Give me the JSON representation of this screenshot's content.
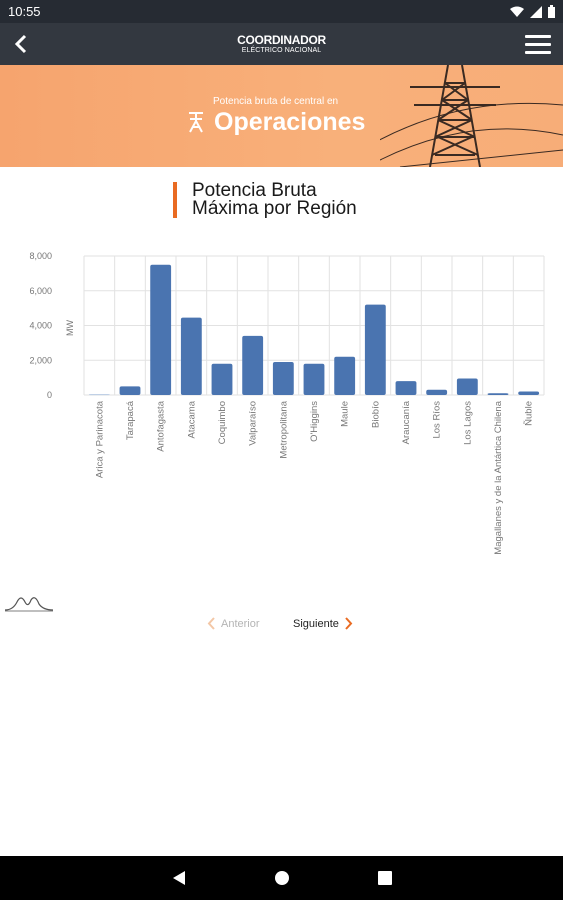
{
  "status_bar": {
    "time": "10:55"
  },
  "app_bar": {
    "logo_line1": "COORDINADOR",
    "logo_line2": "ELÉCTRICO NACIONAL"
  },
  "banner": {
    "pre_title": "Potencia bruta de central en",
    "title": "Operaciones"
  },
  "section": {
    "title_line1": "Potencia Bruta",
    "title_line2": "Máxima por Región"
  },
  "pager": {
    "prev_label": "Anterior",
    "next_label": "Siguiente"
  },
  "colors": {
    "accent": "#e96b22",
    "bar": "#4a74b0",
    "banner": "#f6a46e",
    "appbar": "#333840"
  },
  "chart_data": {
    "type": "bar",
    "ylabel": "MW",
    "ylim": [
      0,
      8000
    ],
    "yticks": [
      "8,000",
      "6,000",
      "4,000",
      "2,000",
      "0"
    ],
    "categories": [
      "Arica y Parinacota",
      "Tarapacá",
      "Antofagasta",
      "Atacama",
      "Coquimbo",
      "Valparaíso",
      "Metropolitana",
      "O'Higgins",
      "Maule",
      "Biobío",
      "Araucanía",
      "Los Ríos",
      "Los Lagos",
      "Magallanes y de la Antártica Chilena",
      "Ñuble"
    ],
    "values": [
      50,
      500,
      7500,
      4450,
      1800,
      3400,
      1900,
      1800,
      2200,
      5200,
      800,
      300,
      950,
      100,
      200
    ],
    "grid": true
  }
}
